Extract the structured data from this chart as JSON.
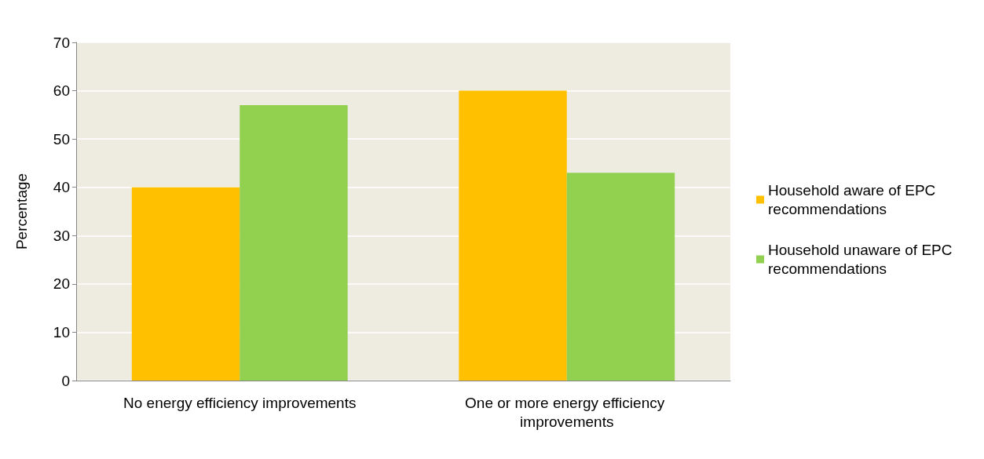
{
  "chart_data": {
    "type": "bar",
    "ylabel": "Percentage",
    "categories": [
      "No energy efficiency improvements",
      "One or more energy efficiency improvements"
    ],
    "series": [
      {
        "name": "Household aware of EPC recommendations",
        "color": "#ffc000",
        "values": [
          40,
          60
        ]
      },
      {
        "name": "Household unaware of EPC recommendations",
        "color": "#92d050",
        "values": [
          57,
          43
        ]
      }
    ],
    "ylim": [
      0,
      70
    ],
    "yticks": [
      0,
      10,
      20,
      30,
      40,
      50,
      60,
      70
    ],
    "grid": "y",
    "legend": "right"
  }
}
